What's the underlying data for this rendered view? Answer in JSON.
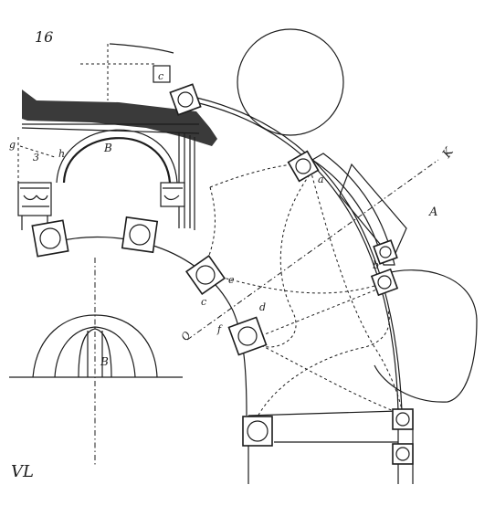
{
  "figure": {
    "number": "16",
    "signature": "VL"
  },
  "labels": {
    "A": "A",
    "B_arch": "B",
    "B_dome": "B",
    "K": "K",
    "O": "O",
    "a": "a",
    "b": "b",
    "c_top": "c",
    "c_left": "c",
    "e": "e",
    "d": "d",
    "f": "f",
    "g": "g",
    "h": "h",
    "three": "3"
  },
  "colors": {
    "ink": "#1c1c1c",
    "paper": "#ffffff"
  }
}
